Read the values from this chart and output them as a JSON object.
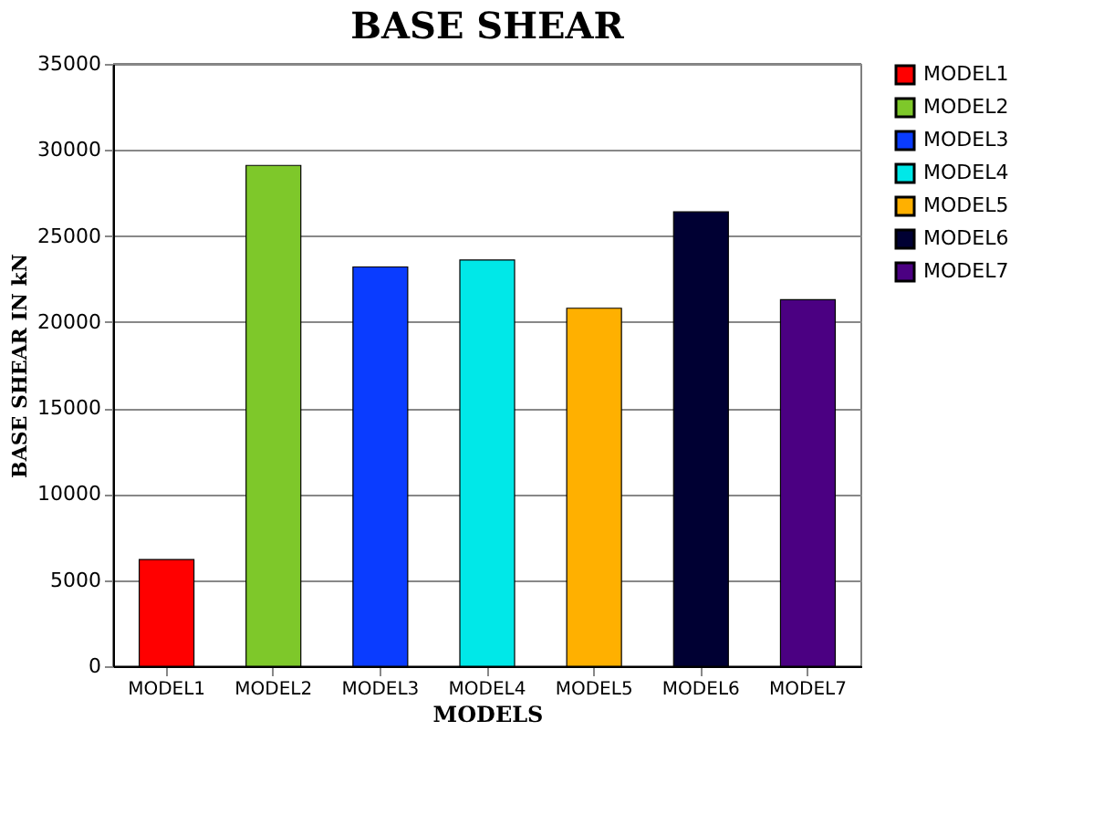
{
  "chart_data": {
    "type": "bar",
    "title": "BASE SHEAR",
    "xlabel": "MODELS",
    "ylabel": "BASE SHEAR IN kN",
    "categories": [
      "MODEL1",
      "MODEL2",
      "MODEL3",
      "MODEL4",
      "MODEL5",
      "MODEL6",
      "MODEL7"
    ],
    "series": [
      {
        "name": "MODEL1",
        "color": "#ff0000",
        "values": [
          6200,
          null,
          null,
          null,
          null,
          null,
          null
        ]
      },
      {
        "name": "MODEL2",
        "color": "#7ec82a",
        "values": [
          null,
          29100,
          null,
          null,
          null,
          null,
          null
        ]
      },
      {
        "name": "MODEL3",
        "color": "#0a3cff",
        "values": [
          null,
          null,
          23200,
          null,
          null,
          null,
          null
        ]
      },
      {
        "name": "MODEL4",
        "color": "#00e8e8",
        "values": [
          null,
          null,
          null,
          23600,
          null,
          null,
          null
        ]
      },
      {
        "name": "MODEL5",
        "color": "#ffb000",
        "values": [
          null,
          null,
          null,
          null,
          20800,
          null,
          null
        ]
      },
      {
        "name": "MODEL6",
        "color": "#000033",
        "values": [
          null,
          null,
          null,
          null,
          null,
          26400,
          null
        ]
      },
      {
        "name": "MODEL7",
        "color": "#4b0082",
        "values": [
          null,
          null,
          null,
          null,
          null,
          null,
          21300
        ]
      }
    ],
    "ylim": [
      0,
      35000
    ],
    "yticks": [
      0,
      5000,
      10000,
      15000,
      20000,
      25000,
      30000,
      35000
    ],
    "grid": "y",
    "legend": "right"
  }
}
